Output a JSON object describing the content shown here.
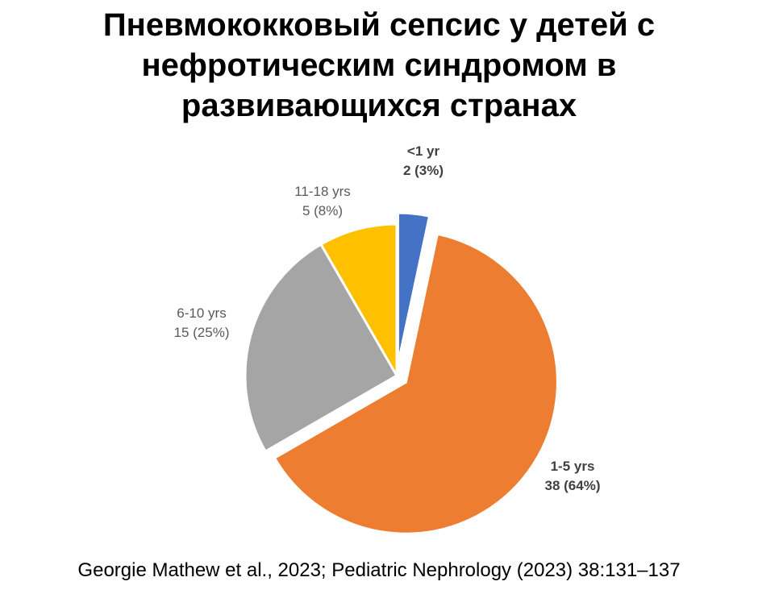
{
  "title": {
    "line1": "Пневмококковый сепсис у детей с",
    "line2": "нефротическим синдромом в",
    "line3": "развивающихся странах"
  },
  "chart_data": {
    "type": "pie",
    "slices": [
      {
        "label": "<1 yr",
        "value": 2,
        "percent": 3,
        "value_text": "2 (3%)",
        "color": "#4472C4",
        "exploded": true
      },
      {
        "label": "1-5 yrs",
        "value": 38,
        "percent": 64,
        "value_text": "38 (64%)",
        "color": "#ED7D31",
        "exploded": true
      },
      {
        "label": "6-10 yrs",
        "value": 15,
        "percent": 25,
        "value_text": "15 (25%)",
        "color": "#A5A5A5",
        "exploded": false
      },
      {
        "label": "11-18 yrs",
        "value": 5,
        "percent": 8,
        "value_text": "5 (8%)",
        "color": "#FFC000",
        "exploded": false
      }
    ]
  },
  "footnote": "Georgie Mathew et al., 2023; Pediatric Nephrology (2023) 38:131–137"
}
